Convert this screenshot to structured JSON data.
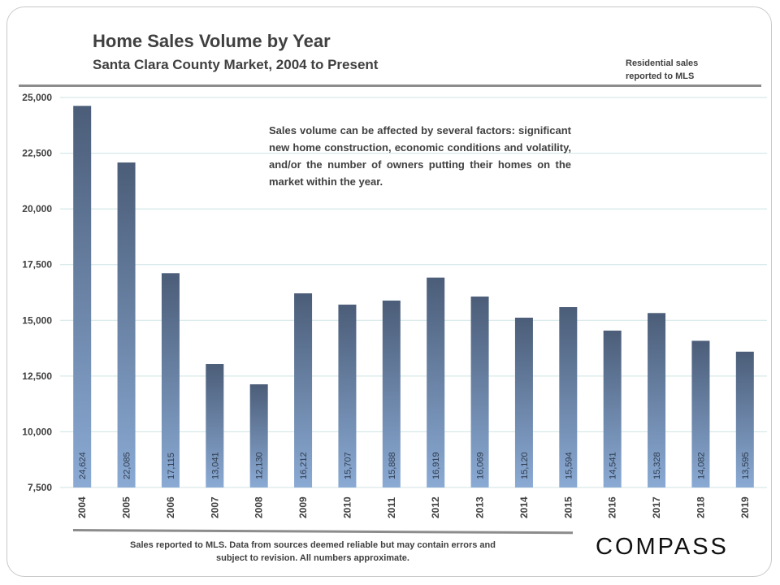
{
  "header": {
    "title": "Home Sales Volume by Year",
    "subtitle": "Santa Clara County Market,  2004 to Present",
    "note": "Residential sales reported to MLS"
  },
  "callout": "Sales volume can be affected by several factors: significant new home construction, economic conditions and volatility, and/or the number of owners putting their homes on the market within the year.",
  "footer": "Sales reported to MLS. Data from sources deemed reliable but may contain errors and subject to revision. All numbers approximate.",
  "brand": {
    "logo": "COMPASS"
  },
  "colors": {
    "bar_top": "#4b5d78",
    "bar_bottom": "#8aaad4",
    "grid": "#cfe3e3",
    "axis_label": "#404040"
  },
  "chart_data": {
    "type": "bar",
    "categories": [
      "2004",
      "2005",
      "2006",
      "2007",
      "2008",
      "2009",
      "2010",
      "2011",
      "2012",
      "2013",
      "2014",
      "2015",
      "2016",
      "2017",
      "2018",
      "2019"
    ],
    "values": [
      24624,
      22085,
      17115,
      13041,
      12130,
      16212,
      15707,
      15888,
      16919,
      16069,
      15120,
      15594,
      14541,
      15328,
      14082,
      13595
    ],
    "data_labels": [
      "24,624",
      "22,085",
      "17,115",
      "13,041",
      "12,130",
      "16,212",
      "15,707",
      "15,888",
      "16,919",
      "16,069",
      "15,120",
      "15,594",
      "14,541",
      "15,328",
      "14,082",
      "13,595"
    ],
    "ylim": [
      7500,
      25000
    ],
    "yticks": [
      7500,
      10000,
      12500,
      15000,
      17500,
      20000,
      22500,
      25000
    ],
    "ytick_labels": [
      "7,500",
      "10,000",
      "12,500",
      "15,000",
      "17,500",
      "20,000",
      "22,500",
      "25,000"
    ],
    "grid": true
  }
}
